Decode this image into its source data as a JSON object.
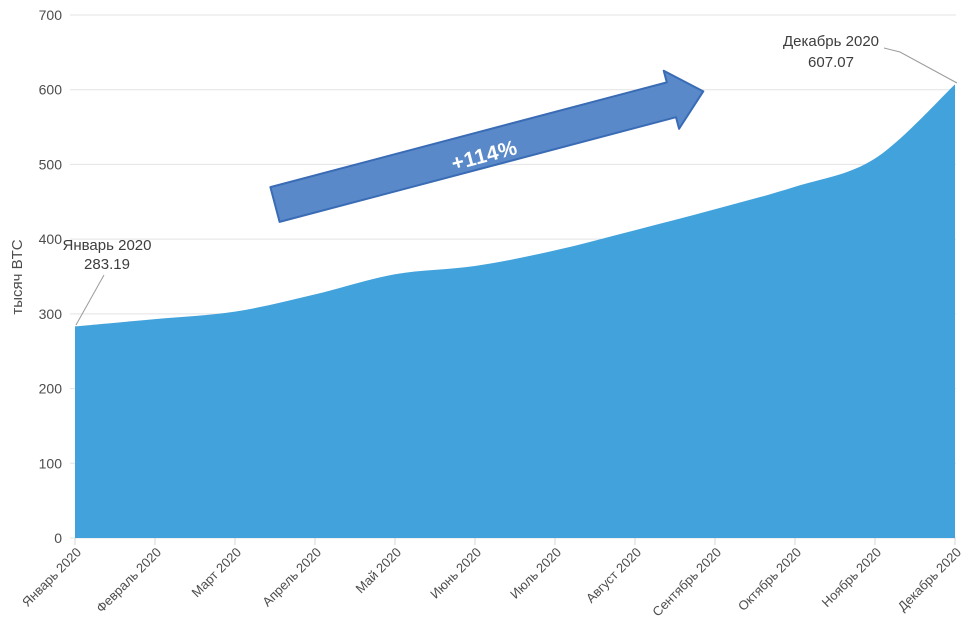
{
  "chart": {
    "arrow_label": "+114%",
    "colors": {
      "area": "#42A2DC",
      "grid": "#E3E3E3",
      "tick": "#D4D4D4",
      "arrow_fill": "#5989C9",
      "arrow_stroke": "#3A6CB5"
    },
    "annotations": {
      "start": {
        "line1": "Январь 2020",
        "line2": "283.19"
      },
      "end": {
        "line1": "Декабрь 2020",
        "line2": "607.07"
      }
    }
  },
  "chart_data": {
    "type": "area",
    "title": "",
    "categories": [
      "Январь 2020",
      "Февраль 2020",
      "Март 2020",
      "Апрель 2020",
      "Май 2020",
      "Июнь 2020",
      "Июль 2020",
      "Август 2020",
      "Сентябрь 2020",
      "Октябрь 2020",
      "Ноябрь 2020",
      "Декабрь 2020"
    ],
    "values": [
      283.19,
      293,
      303,
      326,
      353,
      364,
      385,
      412,
      440,
      470,
      508,
      607.07
    ],
    "xlabel": "",
    "ylabel": "тысяч BTC",
    "ylim": [
      0,
      700
    ],
    "yticks": [
      0,
      100,
      200,
      300,
      400,
      500,
      600,
      700
    ],
    "grid": true,
    "legend": false,
    "annotations": [
      {
        "category": "Январь 2020",
        "value": 283.19,
        "label": "Январь 2020 283.19"
      },
      {
        "category": "Декабрь 2020",
        "value": 607.07,
        "label": "Декабрь 2020 607.07"
      },
      {
        "type": "trend-arrow",
        "label": "+114%",
        "meaning": "growth from January to December"
      }
    ]
  }
}
